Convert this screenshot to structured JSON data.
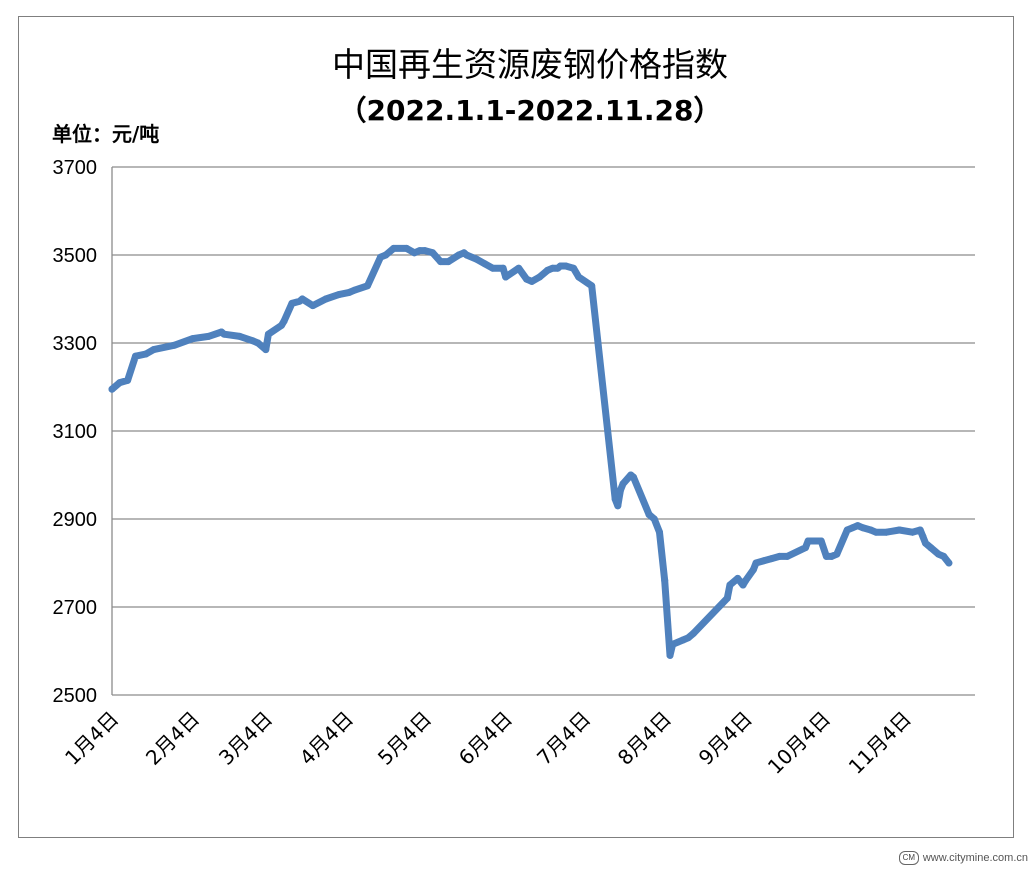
{
  "chart_data": {
    "type": "line",
    "title": "中国再生资源废钢价格指数",
    "subtitle": "（2022.1.1-2022.11.28）",
    "unit_label": "单位：元/吨",
    "ylim": [
      2500,
      3700
    ],
    "yticks": [
      "2500",
      "2700",
      "2900",
      "3100",
      "3300",
      "3500",
      "3700"
    ],
    "xticks": [
      "1月4日",
      "2月4日",
      "3月4日",
      "4月4日",
      "5月4日",
      "6月4日",
      "7月4日",
      "8月4日",
      "9月4日",
      "10月4日",
      "11月4日"
    ],
    "grid": true,
    "legend": "none",
    "series_color": "#4f81bd",
    "series": [
      {
        "x": [
          "1月1日",
          "1月4日",
          "1月7日",
          "1月10日",
          "1月14日",
          "1月17日",
          "1月25日",
          "2月1日",
          "2月7日",
          "2月12日",
          "2月13日",
          "2月19日",
          "2月24日",
          "2月26日",
          "3月1日",
          "3月2日",
          "3月7日",
          "3月8日",
          "3月11日",
          "3月14日",
          "3月15日",
          "3月19日",
          "3月24日",
          "3月29日",
          "4月2日",
          "4月4日",
          "4月9日",
          "4月14日",
          "4月16日",
          "4月19日",
          "4月24日",
          "4月27日",
          "4月29日",
          "5月1日",
          "5月4日",
          "5月7日",
          "5月10日",
          "5月14日",
          "5月16日",
          "5月17日",
          "5月21日",
          "5月24日",
          "5月27日",
          "5月31日",
          "6月1日",
          "6月6日",
          "6月9日",
          "6月11日",
          "6月14日",
          "6月17日",
          "6月19日",
          "6月21日",
          "6月22日",
          "6月24日",
          "6月27日",
          "6月29日",
          "7月4日",
          "7月13日",
          "7月14日",
          "7月15日",
          "7月16日",
          "7月19日",
          "7月20日",
          "7月26日",
          "7月28日",
          "7月30日",
          "8月1日",
          "8月3日",
          "8月4日",
          "8月6日",
          "8月8日",
          "8月10日",
          "8月12日",
          "8月25日",
          "8月26日",
          "8月29日",
          "8月31日",
          "9月1日",
          "9月4日",
          "9月5日",
          "9月8日",
          "9月11日",
          "9月14日",
          "9月17日",
          "9月24日",
          "9月25日",
          "9月30日",
          "10月2日",
          "10月4日",
          "10月6日",
          "10月10日",
          "10月12日",
          "10月14日",
          "10月16日",
          "10月19日",
          "10月21日",
          "10月25日",
          "10月30日",
          "11月4日",
          "11月7日",
          "11月8日",
          "11月9日",
          "11月11日",
          "11月14日",
          "11月16日",
          "11月18日"
        ],
        "values": [
          3195,
          3210,
          3215,
          3270,
          3275,
          3285,
          3295,
          3310,
          3315,
          3325,
          3320,
          3315,
          3305,
          3300,
          3285,
          3320,
          3340,
          3350,
          3390,
          3395,
          3400,
          3385,
          3400,
          3410,
          3415,
          3420,
          3430,
          3495,
          3500,
          3515,
          3515,
          3505,
          3510,
          3510,
          3505,
          3485,
          3485,
          3500,
          3505,
          3500,
          3490,
          3480,
          3470,
          3470,
          3450,
          3470,
          3445,
          3440,
          3450,
          3465,
          3470,
          3470,
          3475,
          3475,
          3470,
          3450,
          3430,
          2945,
          2930,
          2965,
          2980,
          3000,
          2995,
          2910,
          2900,
          2870,
          2760,
          2590,
          2615,
          2620,
          2625,
          2630,
          2640,
          2720,
          2750,
          2765,
          2750,
          2760,
          2785,
          2800,
          2805,
          2810,
          2815,
          2815,
          2835,
          2850,
          2850,
          2815,
          2815,
          2820,
          2875,
          2880,
          2885,
          2880,
          2875,
          2870,
          2870,
          2875,
          2870,
          2875,
          2860,
          2845,
          2835,
          2820,
          2815,
          2800
        ]
      }
    ]
  },
  "watermark": "www.citymine.com.cn",
  "watermark_logo": "CM"
}
